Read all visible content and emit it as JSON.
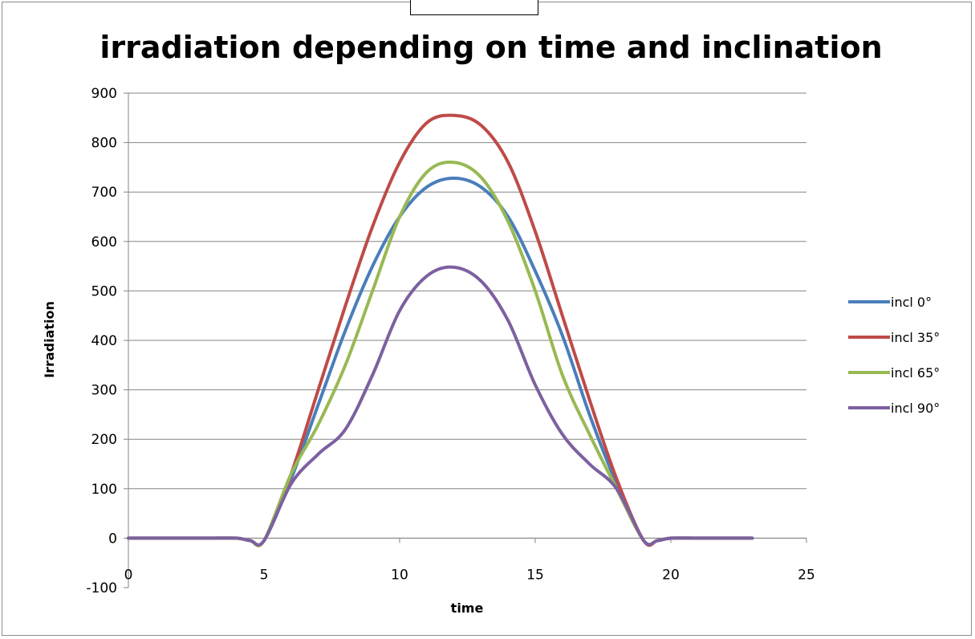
{
  "chart_data": {
    "type": "line",
    "title": "irradiation depending on time and inclination",
    "xlabel": "time",
    "ylabel": "Irradiation",
    "xlim": [
      0,
      25
    ],
    "ylim": [
      -100,
      900
    ],
    "x_ticks": [
      0,
      5,
      10,
      15,
      20,
      25
    ],
    "y_ticks": [
      -100,
      0,
      100,
      200,
      300,
      400,
      500,
      600,
      700,
      800,
      900
    ],
    "grid": true,
    "legend_position": "right",
    "x": [
      0,
      1,
      2,
      3,
      4,
      4.5,
      5,
      6,
      7,
      8,
      9,
      10,
      11,
      12,
      13,
      14,
      15,
      16,
      17,
      18,
      19,
      19.5,
      20,
      21,
      22,
      23
    ],
    "series": [
      {
        "name": "incl 0°",
        "color": "#4a7ebb",
        "values": [
          0,
          0,
          0,
          0,
          0,
          -5,
          -5,
          120,
          270,
          420,
          550,
          650,
          710,
          728,
          710,
          650,
          540,
          410,
          250,
          110,
          -5,
          -5,
          0,
          0,
          0,
          0
        ]
      },
      {
        "name": "incl 35°",
        "color": "#be4b48",
        "values": [
          0,
          0,
          0,
          0,
          0,
          -5,
          -5,
          130,
          300,
          470,
          630,
          760,
          840,
          855,
          835,
          760,
          620,
          450,
          280,
          120,
          -5,
          -5,
          0,
          0,
          0,
          0
        ]
      },
      {
        "name": "incl 65°",
        "color": "#98b954",
        "values": [
          0,
          0,
          0,
          0,
          0,
          -5,
          -5,
          130,
          230,
          350,
          500,
          650,
          740,
          760,
          730,
          640,
          500,
          330,
          210,
          100,
          -5,
          -5,
          0,
          0,
          0,
          0
        ]
      },
      {
        "name": "incl 90°",
        "color": "#7d60a0",
        "values": [
          0,
          0,
          0,
          0,
          0,
          -5,
          -5,
          110,
          170,
          220,
          330,
          460,
          530,
          548,
          520,
          440,
          310,
          210,
          150,
          100,
          -5,
          -5,
          0,
          0,
          0,
          0
        ]
      }
    ]
  }
}
